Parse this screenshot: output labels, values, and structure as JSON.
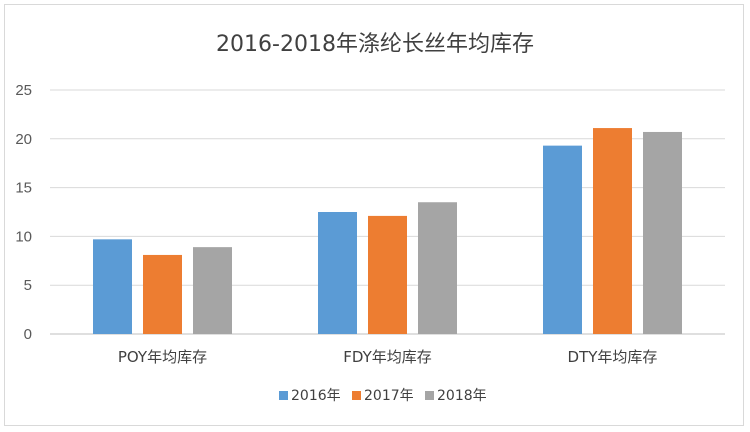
{
  "chart_data": {
    "type": "bar",
    "title": "2016-2018年涤纶长丝年均库存",
    "xlabel": "",
    "ylabel": "",
    "categories": [
      "POY年均库存",
      "FDY年均库存",
      "DTY年均库存"
    ],
    "series": [
      {
        "name": "2016年",
        "values": [
          9.7,
          12.5,
          19.3
        ],
        "color": "#5b9bd5"
      },
      {
        "name": "2017年",
        "values": [
          8.1,
          12.1,
          21.1
        ],
        "color": "#ed7d31"
      },
      {
        "name": "2018年",
        "values": [
          8.9,
          13.5,
          20.7
        ],
        "color": "#a5a5a5"
      }
    ],
    "ylim": [
      0,
      25
    ],
    "yticks": [
      0,
      5,
      10,
      15,
      20,
      25
    ],
    "grid": true,
    "legend": "bottom"
  }
}
